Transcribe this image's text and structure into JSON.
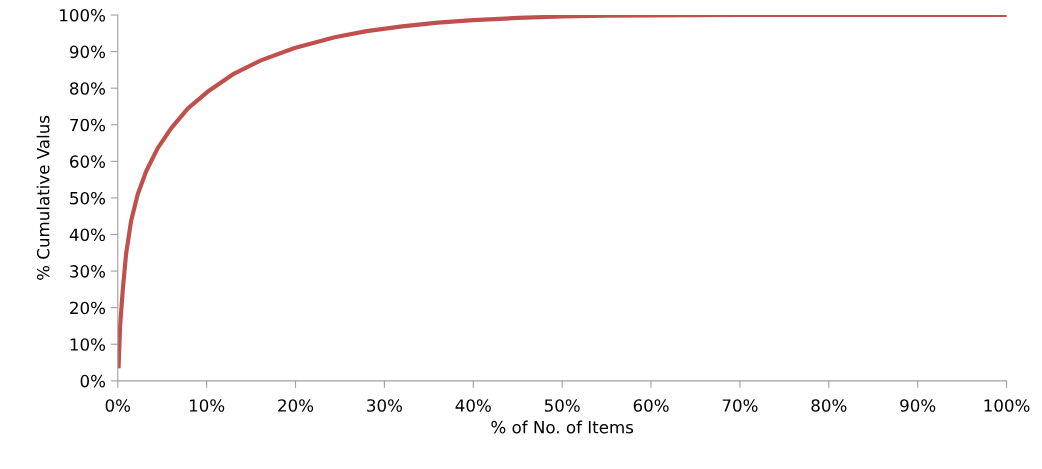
{
  "chart_data": {
    "type": "line",
    "xlabel": "% of No. of Items",
    "ylabel": "% Cumulative Valus",
    "series": [
      {
        "color": "#c0504d",
        "x": [
          0.1,
          0.26,
          0.56,
          0.94,
          1.5,
          2.25,
          3.2,
          4.5,
          6.0,
          7.9,
          10.1,
          13.1,
          16.1,
          19.9,
          24.4,
          28,
          32,
          36,
          40,
          45,
          50,
          55,
          60,
          70,
          80,
          90,
          100
        ],
        "values": [
          4,
          14.8,
          24.7,
          34.7,
          43.7,
          51,
          57.3,
          63.6,
          69,
          74.5,
          79,
          84,
          87.6,
          91,
          93.9,
          95.6,
          96.9,
          97.9,
          98.6,
          99.2,
          99.6,
          99.8,
          99.9,
          100,
          100,
          100,
          100
        ]
      }
    ],
    "xlim": [
      0,
      100
    ],
    "ylim": [
      0,
      100
    ],
    "xticks": [
      {
        "value": 0,
        "label": "0%"
      },
      {
        "value": 10,
        "label": "10%"
      },
      {
        "value": 20,
        "label": "20%"
      },
      {
        "value": 30,
        "label": "30%"
      },
      {
        "value": 40,
        "label": "40%"
      },
      {
        "value": 50,
        "label": "50%"
      },
      {
        "value": 60,
        "label": "60%"
      },
      {
        "value": 70,
        "label": "70%"
      },
      {
        "value": 80,
        "label": "80%"
      },
      {
        "value": 90,
        "label": "90%"
      },
      {
        "value": 100,
        "label": "100%"
      }
    ],
    "yticks": [
      {
        "value": 0,
        "label": "0%"
      },
      {
        "value": 10,
        "label": "10%"
      },
      {
        "value": 20,
        "label": "20%"
      },
      {
        "value": 30,
        "label": "30%"
      },
      {
        "value": 40,
        "label": "40%"
      },
      {
        "value": 50,
        "label": "50%"
      },
      {
        "value": 60,
        "label": "60%"
      },
      {
        "value": 70,
        "label": "70%"
      },
      {
        "value": 80,
        "label": "80%"
      },
      {
        "value": 90,
        "label": "90%"
      },
      {
        "value": 100,
        "label": "100%"
      }
    ],
    "grid": false,
    "marker": "none",
    "line_style": "solid"
  }
}
